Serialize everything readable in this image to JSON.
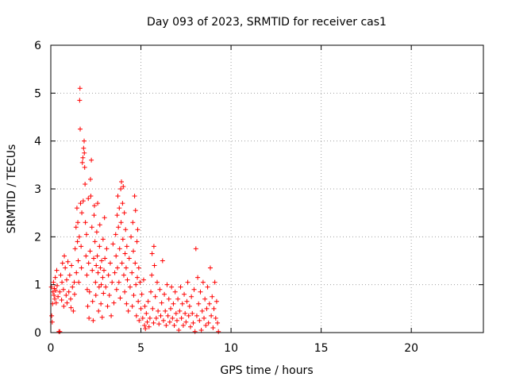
{
  "chart_data": {
    "type": "scatter",
    "title": "Day 093 of 2023, SRMTID for receiver cas1",
    "xlabel": "GPS time / hours",
    "ylabel": "SRMTID / TECUs",
    "xlim": [
      0,
      24
    ],
    "ylim": [
      0,
      6
    ],
    "x_ticks": [
      0,
      5,
      10,
      15,
      20
    ],
    "y_ticks": [
      0,
      1,
      2,
      3,
      4,
      5,
      6
    ],
    "grid": true,
    "marker": "+",
    "colors": {
      "series": "#ff0000",
      "grid": "#a0a0a0",
      "axes": "#000000"
    },
    "series": [
      {
        "name": "cas1",
        "points": [
          [
            0.03,
            0.95
          ],
          [
            0.05,
            0.35
          ],
          [
            0.08,
            0.22
          ],
          [
            0.1,
            0.6
          ],
          [
            0.12,
            0.85
          ],
          [
            0.15,
            1.05
          ],
          [
            0.18,
            0.78
          ],
          [
            0.2,
            0.92
          ],
          [
            0.22,
            0.7
          ],
          [
            0.25,
            1.15
          ],
          [
            0.28,
            0.88
          ],
          [
            0.3,
            0.62
          ],
          [
            0.33,
            1.3
          ],
          [
            0.35,
            0.98
          ],
          [
            0.4,
            0.75
          ],
          [
            0.45,
            0.02
          ],
          [
            0.5,
            0.02
          ],
          [
            0.5,
            0.85
          ],
          [
            0.55,
            1.2
          ],
          [
            0.6,
            0.68
          ],
          [
            0.62,
            1.05
          ],
          [
            0.65,
            1.45
          ],
          [
            0.7,
            0.9
          ],
          [
            0.72,
            0.55
          ],
          [
            0.75,
            1.6
          ],
          [
            0.8,
            1.35
          ],
          [
            0.85,
            0.78
          ],
          [
            0.88,
            1.1
          ],
          [
            0.9,
            0.62
          ],
          [
            0.95,
            1.48
          ],
          [
            1.0,
            0.85
          ],
          [
            1.05,
            1.2
          ],
          [
            1.1,
            0.7
          ],
          [
            1.12,
            0.52
          ],
          [
            1.15,
            1.4
          ],
          [
            1.2,
            0.95
          ],
          [
            1.25,
            0.45
          ],
          [
            1.3,
            1.05
          ],
          [
            1.32,
            0.8
          ],
          [
            1.35,
            1.75
          ],
          [
            1.4,
            2.2
          ],
          [
            1.42,
            1.25
          ],
          [
            1.45,
            2.6
          ],
          [
            1.48,
            1.9
          ],
          [
            1.5,
            2.3
          ],
          [
            1.52,
            1.5
          ],
          [
            1.55,
            1.05
          ],
          [
            1.58,
            2.0
          ],
          [
            1.6,
            4.85
          ],
          [
            1.62,
            5.1
          ],
          [
            1.63,
            4.25
          ],
          [
            1.65,
            2.7
          ],
          [
            1.68,
            1.8
          ],
          [
            1.7,
            1.35
          ],
          [
            1.72,
            2.5
          ],
          [
            1.75,
            3.55
          ],
          [
            1.78,
            3.65
          ],
          [
            1.8,
            2.75
          ],
          [
            1.82,
            3.85
          ],
          [
            1.85,
            4.0
          ],
          [
            1.86,
            3.75
          ],
          [
            1.88,
            3.45
          ],
          [
            1.9,
            3.1
          ],
          [
            1.92,
            2.3
          ],
          [
            1.95,
            1.6
          ],
          [
            1.98,
            2.05
          ],
          [
            2.0,
            1.2
          ],
          [
            2.02,
            0.9
          ],
          [
            2.05,
            0.55
          ],
          [
            2.08,
            2.8
          ],
          [
            2.1,
            1.45
          ],
          [
            2.12,
            0.3
          ],
          [
            2.15,
            0.85
          ],
          [
            2.18,
            1.7
          ],
          [
            2.2,
            3.2
          ],
          [
            2.22,
            2.85
          ],
          [
            2.25,
            3.6
          ],
          [
            2.28,
            2.2
          ],
          [
            2.3,
            1.3
          ],
          [
            2.32,
            0.65
          ],
          [
            2.35,
            0.25
          ],
          [
            2.38,
            1.55
          ],
          [
            2.4,
            2.45
          ],
          [
            2.42,
            2.65
          ],
          [
            2.45,
            1.9
          ],
          [
            2.48,
            1.05
          ],
          [
            2.5,
            0.78
          ],
          [
            2.52,
            1.4
          ],
          [
            2.55,
            2.1
          ],
          [
            2.58,
            1.6
          ],
          [
            2.6,
            2.7
          ],
          [
            2.62,
            1.25
          ],
          [
            2.65,
            0.45
          ],
          [
            2.68,
            0.95
          ],
          [
            2.7,
            1.8
          ],
          [
            2.72,
            2.25
          ],
          [
            2.75,
            1.35
          ],
          [
            2.78,
            0.6
          ],
          [
            2.8,
            1.0
          ],
          [
            2.82,
            1.5
          ],
          [
            2.85,
            0.32
          ],
          [
            2.88,
            1.15
          ],
          [
            2.9,
            1.95
          ],
          [
            2.92,
            0.82
          ],
          [
            2.95,
            1.3
          ],
          [
            2.98,
            2.4
          ],
          [
            3.0,
            1.55
          ],
          [
            3.05,
            0.95
          ],
          [
            3.1,
            1.75
          ],
          [
            3.15,
            0.55
          ],
          [
            3.2,
            1.2
          ],
          [
            3.25,
            0.78
          ],
          [
            3.3,
            1.45
          ],
          [
            3.35,
            0.35
          ],
          [
            3.4,
            1.05
          ],
          [
            3.45,
            1.85
          ],
          [
            3.5,
            0.62
          ],
          [
            3.55,
            1.25
          ],
          [
            3.6,
            2.05
          ],
          [
            3.62,
            1.6
          ],
          [
            3.65,
            0.9
          ],
          [
            3.68,
            2.45
          ],
          [
            3.7,
            1.35
          ],
          [
            3.72,
            2.85
          ],
          [
            3.75,
            2.2
          ],
          [
            3.78,
            1.05
          ],
          [
            3.8,
            2.6
          ],
          [
            3.82,
            1.75
          ],
          [
            3.85,
            0.72
          ],
          [
            3.88,
            3.0
          ],
          [
            3.9,
            2.3
          ],
          [
            3.92,
            3.15
          ],
          [
            3.95,
            1.45
          ],
          [
            3.98,
            2.7
          ],
          [
            4.0,
            1.95
          ],
          [
            4.02,
            3.05
          ],
          [
            4.05,
            1.2
          ],
          [
            4.08,
            2.5
          ],
          [
            4.1,
            0.85
          ],
          [
            4.12,
            1.65
          ],
          [
            4.15,
            2.15
          ],
          [
            4.18,
            1.35
          ],
          [
            4.2,
            0.6
          ],
          [
            4.22,
            1.8
          ],
          [
            4.25,
            1.1
          ],
          [
            4.3,
            0.45
          ],
          [
            4.35,
            1.55
          ],
          [
            4.4,
            0.95
          ],
          [
            4.45,
            2.0
          ],
          [
            4.5,
            1.25
          ],
          [
            4.52,
            0.55
          ],
          [
            4.55,
            2.3
          ],
          [
            4.58,
            1.7
          ],
          [
            4.6,
            0.78
          ],
          [
            4.65,
            2.85
          ],
          [
            4.68,
            1.45
          ],
          [
            4.7,
            2.55
          ],
          [
            4.72,
            1.0
          ],
          [
            4.75,
            0.35
          ],
          [
            4.78,
            1.9
          ],
          [
            4.8,
            1.15
          ],
          [
            4.82,
            2.15
          ],
          [
            4.85,
            0.65
          ],
          [
            4.88,
            1.35
          ],
          [
            4.9,
            0.25
          ],
          [
            4.95,
            1.05
          ],
          [
            5.0,
            0.5
          ],
          [
            5.05,
            0.8
          ],
          [
            5.1,
            0.3
          ],
          [
            5.15,
            1.1
          ],
          [
            5.2,
            0.15
          ],
          [
            5.22,
            0.55
          ],
          [
            5.25,
            0.08
          ],
          [
            5.3,
            0.4
          ],
          [
            5.35,
            0.22
          ],
          [
            5.4,
            0.65
          ],
          [
            5.45,
            0.12
          ],
          [
            5.5,
            0.3
          ],
          [
            5.55,
            0.85
          ],
          [
            5.6,
            1.2
          ],
          [
            5.62,
            1.65
          ],
          [
            5.65,
            0.5
          ],
          [
            5.7,
            0.2
          ],
          [
            5.72,
            1.8
          ],
          [
            5.75,
            1.4
          ],
          [
            5.8,
            0.75
          ],
          [
            5.85,
            0.3
          ],
          [
            5.9,
            1.05
          ],
          [
            5.95,
            0.45
          ],
          [
            6.0,
            0.18
          ],
          [
            6.05,
            0.9
          ],
          [
            6.1,
            0.35
          ],
          [
            6.15,
            0.62
          ],
          [
            6.2,
            1.5
          ],
          [
            6.25,
            0.25
          ],
          [
            6.3,
            0.8
          ],
          [
            6.35,
            0.45
          ],
          [
            6.4,
            0.15
          ],
          [
            6.45,
            1.0
          ],
          [
            6.5,
            0.35
          ],
          [
            6.55,
            0.7
          ],
          [
            6.6,
            0.22
          ],
          [
            6.65,
            0.5
          ],
          [
            6.7,
            0.95
          ],
          [
            6.75,
            0.3
          ],
          [
            6.8,
            0.6
          ],
          [
            6.85,
            0.15
          ],
          [
            6.9,
            0.85
          ],
          [
            6.95,
            0.4
          ],
          [
            7.0,
            0.25
          ],
          [
            7.05,
            0.7
          ],
          [
            7.1,
            0.05
          ],
          [
            7.15,
            0.45
          ],
          [
            7.2,
            0.95
          ],
          [
            7.25,
            0.3
          ],
          [
            7.3,
            0.6
          ],
          [
            7.35,
            0.15
          ],
          [
            7.4,
            0.8
          ],
          [
            7.45,
            0.4
          ],
          [
            7.5,
            0.22
          ],
          [
            7.55,
            0.65
          ],
          [
            7.6,
            1.05
          ],
          [
            7.65,
            0.35
          ],
          [
            7.7,
            0.55
          ],
          [
            7.75,
            0.12
          ],
          [
            7.8,
            0.75
          ],
          [
            7.85,
            0.4
          ],
          [
            7.9,
            0.2
          ],
          [
            7.95,
            0.9
          ],
          [
            8.0,
            0.02
          ],
          [
            8.05,
            1.75
          ],
          [
            8.1,
            0.35
          ],
          [
            8.15,
            1.15
          ],
          [
            8.2,
            0.6
          ],
          [
            8.25,
            0.25
          ],
          [
            8.3,
            0.85
          ],
          [
            8.35,
            0.05
          ],
          [
            8.4,
            0.45
          ],
          [
            8.45,
            1.05
          ],
          [
            8.5,
            0.3
          ],
          [
            8.55,
            0.7
          ],
          [
            8.6,
            0.15
          ],
          [
            8.65,
            0.5
          ],
          [
            8.7,
            0.95
          ],
          [
            8.75,
            0.2
          ],
          [
            8.8,
            0.6
          ],
          [
            8.85,
            1.35
          ],
          [
            8.9,
            0.35
          ],
          [
            8.95,
            0.75
          ],
          [
            9.0,
            0.1
          ],
          [
            9.05,
            0.5
          ],
          [
            9.1,
            1.05
          ],
          [
            9.15,
            0.3
          ],
          [
            9.2,
            0.65
          ],
          [
            9.25,
            0.2
          ],
          [
            9.3,
            0.02
          ]
        ]
      }
    ]
  }
}
